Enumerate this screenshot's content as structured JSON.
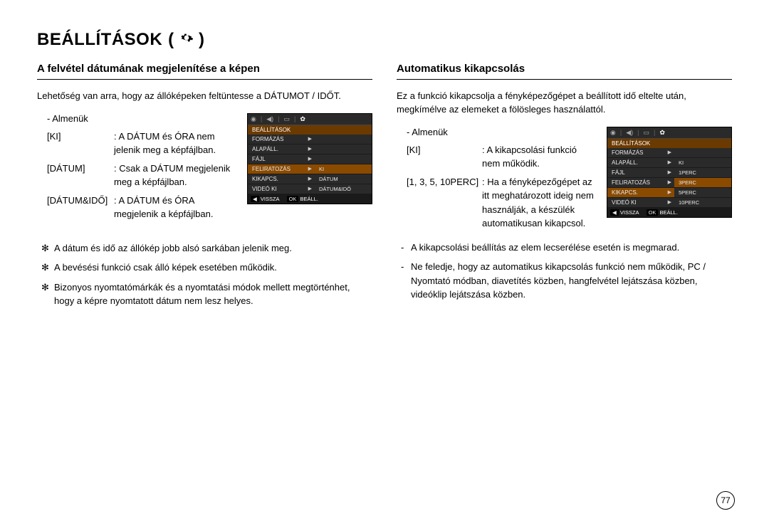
{
  "page": {
    "title": "BEÁLLÍTÁSOK",
    "title_icon": "gear-icon",
    "page_number": "77"
  },
  "left": {
    "section_title": "A felvétel dátumának megjelenítése a képen",
    "intro": "Lehetőség van arra, hogy az állóképeken feltüntesse a DÁTUMOT / IDŐT.",
    "submenu_label": "- Almenük",
    "defs": [
      {
        "term": "[KI]",
        "desc": ": A DÁTUM és ÓRA nem jelenik meg a képfájlban."
      },
      {
        "term": "[DÁTUM]",
        "desc": ": Csak a DÁTUM megjelenik meg a képfájlban."
      },
      {
        "term": "[DÁTUM&IDŐ]",
        "desc": ": A DÁTUM és ÓRA megjelenik a képfájlban."
      }
    ],
    "notes": [
      "A dátum és idő az állókép jobb alsó sarkában jelenik meg.",
      "A bevésési funkció csak álló képek esetében működik.",
      "Bizonyos nyomtatómárkák és a nyomtatási módok mellett megtörténhet, hogy a képre nyomtatott dátum nem lesz helyes."
    ],
    "cam": {
      "header": "BEÁLLÍTÁSOK",
      "left_items": [
        {
          "label": "FORMÁZÁS",
          "hl": false
        },
        {
          "label": "ALAPÁLL.",
          "hl": false
        },
        {
          "label": "FÁJL",
          "hl": false
        },
        {
          "label": "FELIRATOZÁS",
          "hl": true
        },
        {
          "label": "KIKAPCS.",
          "hl": false
        },
        {
          "label": "VIDEÓ KI",
          "hl": false
        }
      ],
      "right_items": [
        {
          "label": "KI",
          "hl": true
        },
        {
          "label": "DÁTUM",
          "hl": false
        },
        {
          "label": "DÁTUM&IDŐ",
          "hl": false
        }
      ],
      "footer_back_key": "◀",
      "footer_back": "VISSZA",
      "footer_ok_key": "OK",
      "footer_ok": "BEÁLL."
    }
  },
  "right": {
    "section_title": "Automatikus kikapcsolás",
    "intro": "Ez a funkció kikapcsolja a fényképezőgépet a beállított idő eltelte után, megkímélve az elemeket a fölösleges használattól.",
    "submenu_label": "- Almenük",
    "defs": [
      {
        "term": "[KI]",
        "desc": ": A kikapcsolási funkció nem működik."
      },
      {
        "term": "[1, 3, 5, 10PERC]",
        "desc": ": Ha a fényképezőgépet az itt meghatározott ideig nem használják, a készülék automatikusan kikapcsol."
      }
    ],
    "dash_notes": [
      "A kikapcsolási beállítás az elem lecserélése esetén is megmarad.",
      "Ne feledje, hogy az automatikus kikapcsolás funkció nem működik, PC / Nyomtató módban, diavetítés közben, hangfelvétel lejátszása közben, videóklip lejátszása közben."
    ],
    "cam": {
      "header": "BEÁLLÍTÁSOK",
      "left_items": [
        {
          "label": "FORMÁZÁS",
          "hl": false
        },
        {
          "label": "ALAPÁLL.",
          "hl": false
        },
        {
          "label": "FÁJL",
          "hl": false
        },
        {
          "label": "FELIRATOZÁS",
          "hl": false
        },
        {
          "label": "KIKAPCS.",
          "hl": true
        },
        {
          "label": "VIDEÓ KI",
          "hl": false
        }
      ],
      "right_items": [
        {
          "label": "KI",
          "hl": false
        },
        {
          "label": "1PERC",
          "hl": false
        },
        {
          "label": "3PERC",
          "hl": true
        },
        {
          "label": "5PERC",
          "hl": false
        },
        {
          "label": "10PERC",
          "hl": false
        }
      ],
      "footer_back_key": "◀",
      "footer_back": "VISSZA",
      "footer_ok_key": "OK",
      "footer_ok": "BEÁLL."
    }
  },
  "colors": {
    "text": "#000000",
    "cam_bg": "#1a1a1a",
    "cam_header": "#6b3a00",
    "cam_highlight": "#8a4a00",
    "cam_panel": "#2a2a2a"
  }
}
